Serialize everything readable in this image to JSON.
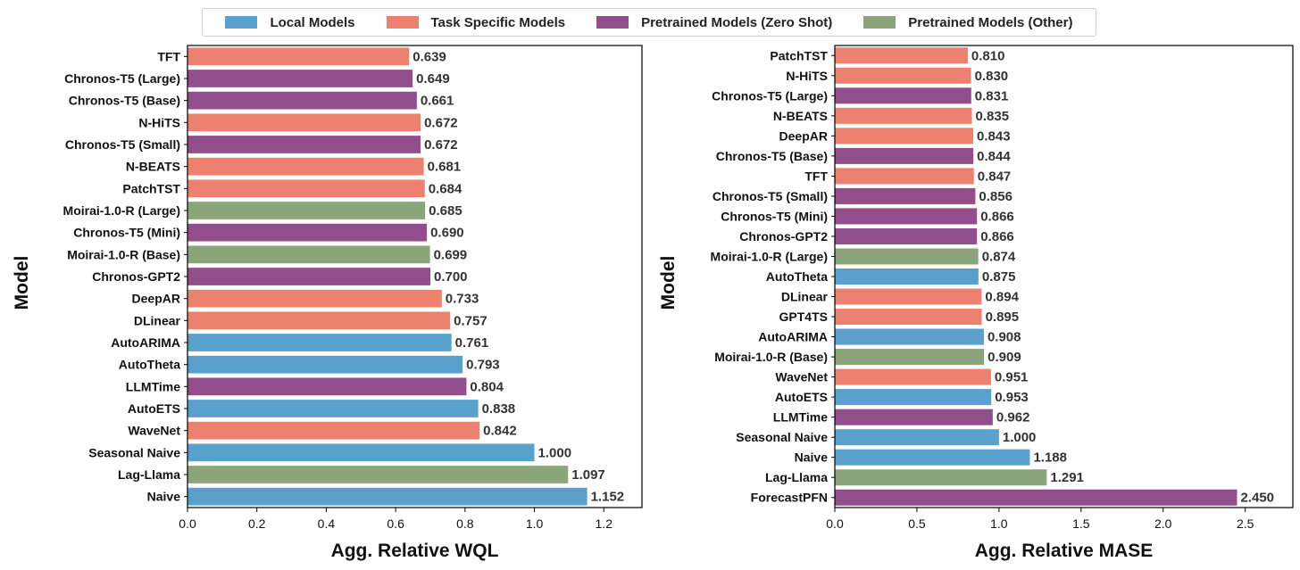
{
  "legend": [
    {
      "label": "Local Models",
      "color": "#5aa0cd"
    },
    {
      "label": "Task Specific Models",
      "color": "#ec8170"
    },
    {
      "label": "Pretrained Models (Zero Shot)",
      "color": "#924d8b"
    },
    {
      "label": "Pretrained Models (Other)",
      "color": "#8ca47a"
    }
  ],
  "chart_data": [
    {
      "type": "bar",
      "orientation": "horizontal",
      "xlabel": "Agg. Relative WQL",
      "ylabel": "Model",
      "xlim": [
        0,
        1.31
      ],
      "xticks": [
        "0.0",
        "0.2",
        "0.4",
        "0.6",
        "0.8",
        "1.0",
        "1.2"
      ],
      "categories": [
        "TFT",
        "Chronos-T5 (Large)",
        "Chronos-T5 (Base)",
        "N-HiTS",
        "Chronos-T5 (Small)",
        "N-BEATS",
        "PatchTST",
        "Moirai-1.0-R (Large)",
        "Chronos-T5 (Mini)",
        "Moirai-1.0-R (Base)",
        "Chronos-GPT2",
        "DeepAR",
        "DLinear",
        "AutoARIMA",
        "AutoTheta",
        "LLMTime",
        "AutoETS",
        "WaveNet",
        "Seasonal Naive",
        "Lag-Llama",
        "Naive"
      ],
      "values": [
        0.639,
        0.649,
        0.661,
        0.672,
        0.672,
        0.681,
        0.684,
        0.685,
        0.69,
        0.699,
        0.7,
        0.733,
        0.757,
        0.761,
        0.793,
        0.804,
        0.838,
        0.842,
        1.0,
        1.097,
        1.152
      ],
      "value_labels": [
        "0.639",
        "0.649",
        "0.661",
        "0.672",
        "0.672",
        "0.681",
        "0.684",
        "0.685",
        "0.690",
        "0.699",
        "0.700",
        "0.733",
        "0.757",
        "0.761",
        "0.793",
        "0.804",
        "0.838",
        "0.842",
        "1.000",
        "1.097",
        "1.152"
      ],
      "groups": [
        "Task Specific Models",
        "Pretrained Models (Zero Shot)",
        "Pretrained Models (Zero Shot)",
        "Task Specific Models",
        "Pretrained Models (Zero Shot)",
        "Task Specific Models",
        "Task Specific Models",
        "Pretrained Models (Other)",
        "Pretrained Models (Zero Shot)",
        "Pretrained Models (Other)",
        "Pretrained Models (Zero Shot)",
        "Task Specific Models",
        "Task Specific Models",
        "Local Models",
        "Local Models",
        "Pretrained Models (Zero Shot)",
        "Local Models",
        "Task Specific Models",
        "Local Models",
        "Pretrained Models (Other)",
        "Local Models"
      ]
    },
    {
      "type": "bar",
      "orientation": "horizontal",
      "xlabel": "Agg. Relative MASE",
      "ylabel": "Model",
      "xlim": [
        0,
        2.79
      ],
      "xticks": [
        "0.0",
        "0.5",
        "1.0",
        "1.5",
        "2.0",
        "2.5"
      ],
      "categories": [
        "PatchTST",
        "N-HiTS",
        "Chronos-T5 (Large)",
        "N-BEATS",
        "DeepAR",
        "Chronos-T5 (Base)",
        "TFT",
        "Chronos-T5 (Small)",
        "Chronos-T5 (Mini)",
        "Chronos-GPT2",
        "Moirai-1.0-R (Large)",
        "AutoTheta",
        "DLinear",
        "GPT4TS",
        "AutoARIMA",
        "Moirai-1.0-R (Base)",
        "WaveNet",
        "AutoETS",
        "LLMTime",
        "Seasonal Naive",
        "Naive",
        "Lag-Llama",
        "ForecastPFN"
      ],
      "values": [
        0.81,
        0.83,
        0.831,
        0.835,
        0.843,
        0.844,
        0.847,
        0.856,
        0.866,
        0.866,
        0.874,
        0.875,
        0.894,
        0.895,
        0.908,
        0.909,
        0.951,
        0.953,
        0.962,
        1.0,
        1.188,
        1.291,
        2.45
      ],
      "value_labels": [
        "0.810",
        "0.830",
        "0.831",
        "0.835",
        "0.843",
        "0.844",
        "0.847",
        "0.856",
        "0.866",
        "0.866",
        "0.874",
        "0.875",
        "0.894",
        "0.895",
        "0.908",
        "0.909",
        "0.951",
        "0.953",
        "0.962",
        "1.000",
        "1.188",
        "1.291",
        "2.450"
      ],
      "groups": [
        "Task Specific Models",
        "Task Specific Models",
        "Pretrained Models (Zero Shot)",
        "Task Specific Models",
        "Task Specific Models",
        "Pretrained Models (Zero Shot)",
        "Task Specific Models",
        "Pretrained Models (Zero Shot)",
        "Pretrained Models (Zero Shot)",
        "Pretrained Models (Zero Shot)",
        "Pretrained Models (Other)",
        "Local Models",
        "Task Specific Models",
        "Task Specific Models",
        "Local Models",
        "Pretrained Models (Other)",
        "Task Specific Models",
        "Local Models",
        "Pretrained Models (Zero Shot)",
        "Local Models",
        "Local Models",
        "Pretrained Models (Other)",
        "Pretrained Models (Zero Shot)"
      ]
    }
  ]
}
